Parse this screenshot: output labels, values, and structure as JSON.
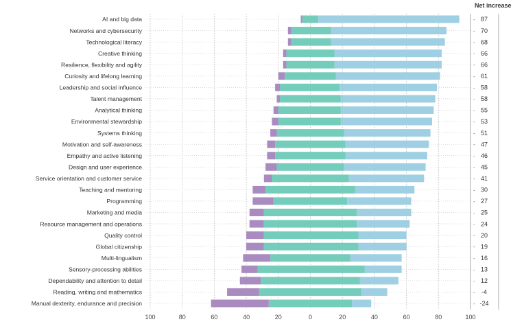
{
  "chart_data": {
    "type": "bar",
    "stacked": true,
    "orientation": "horizontal",
    "net_header": "Net increase",
    "xlim": [
      -100,
      100
    ],
    "x_ticks": [
      "100",
      "80",
      "60",
      "40",
      "20",
      "0",
      "20",
      "40",
      "60",
      "80",
      "100"
    ],
    "grid": "vertical dotted",
    "colors": {
      "decrease_strong": "#a98bbf",
      "increase_mid": "#74ccbb",
      "increase_strong": "#9fcfe2",
      "gridline": "#b5b5b5"
    },
    "categories": [
      "AI and big data",
      "Networks and cybersecurity",
      "Technological literacy",
      "Creative thinking",
      "Resilience, flexibility and agility",
      "Curiosity and lifelong learning",
      "Leadership and social influence",
      "Talent management",
      "Analytical thinking",
      "Environmental stewardship",
      "Systems thinking",
      "Motivation and self-awareness",
      "Empathy and active listening",
      "Design and user experience",
      "Service orientation and customer service",
      "Teaching and mentoring",
      "Programming",
      "Marketing and media",
      "Resource management and operations",
      "Quality control",
      "Global citizenship",
      "Multi-lingualism",
      "Sensory-processing abilities",
      "Dependability and attention to detail",
      "Reading, writing and mathematics",
      "Manual dexterity, endurance and precision"
    ],
    "series": [
      {
        "values": [
          -1,
          -2,
          -2,
          -2,
          -2,
          -4,
          -3,
          -2,
          -3,
          -4,
          -4,
          -5,
          -5,
          -7,
          -5,
          -8,
          -13,
          -9,
          -9,
          -11,
          -11,
          -17,
          -10,
          -13,
          -20,
          -36
        ]
      },
      {
        "values": [
          -5,
          -12,
          -12,
          -15,
          -15,
          -16,
          -19,
          -19,
          -20,
          -20,
          -21,
          -22,
          -22,
          -21,
          -24,
          -28,
          -23,
          -29,
          -29,
          -29,
          -29,
          -25,
          -33,
          -31,
          -32,
          -26
        ]
      },
      {
        "values": [
          5,
          13,
          13,
          15,
          15,
          16,
          18,
          19,
          19,
          19,
          21,
          22,
          22,
          21,
          24,
          28,
          23,
          29,
          29,
          30,
          30,
          25,
          34,
          31,
          32,
          26
        ]
      },
      {
        "values": [
          88,
          72,
          71,
          67,
          67,
          65,
          61,
          59,
          58,
          57,
          54,
          52,
          51,
          51,
          47,
          37,
          40,
          34,
          33,
          30,
          30,
          32,
          23,
          24,
          16,
          12
        ]
      }
    ],
    "net_increase": [
      "87",
      "70",
      "68",
      "66",
      "66",
      "61",
      "58",
      "58",
      "55",
      "53",
      "51",
      "47",
      "46",
      "45",
      "41",
      "30",
      "27",
      "25",
      "24",
      "20",
      "19",
      "16",
      "13",
      "12",
      "-4",
      "-24"
    ]
  }
}
